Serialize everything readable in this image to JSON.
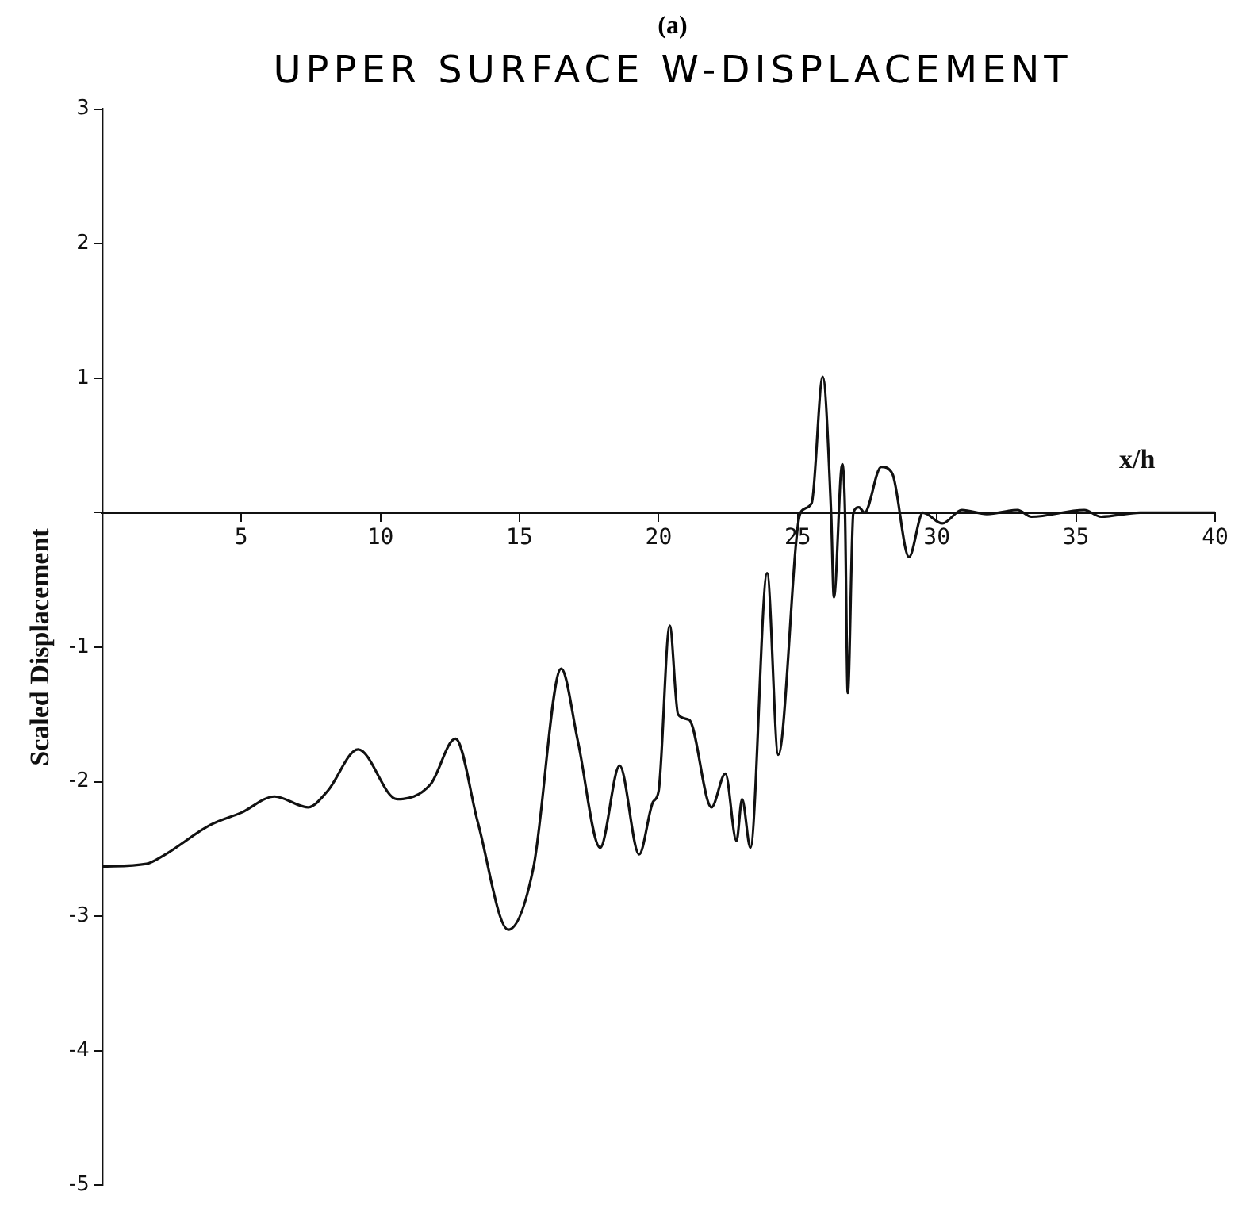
{
  "chart_data": {
    "type": "line",
    "title": "UPPER SURFACE W-DISPLACEMENT",
    "subtitle": "(a)",
    "xlabel": "x/h",
    "ylabel": "Scaled Displacement",
    "series": [
      {
        "color": "#111111",
        "x": [
          0,
          1.6,
          2.2,
          3.9,
          5.0,
          6.2,
          7.4,
          8.1,
          9.2,
          10.6,
          11.8,
          12.7,
          13.5,
          14.6,
          15.5,
          16.5,
          17.1,
          17.9,
          18.6,
          19.3,
          19.8,
          20.0,
          20.4,
          20.7,
          21.1,
          21.9,
          22.4,
          22.8,
          23.0,
          23.3,
          23.9,
          24.3,
          25.1,
          25.5,
          25.9,
          26.2,
          26.3,
          26.6,
          26.7,
          26.8,
          27.0,
          27.2,
          27.4,
          28.0,
          28.4,
          29.0,
          29.5,
          30.2,
          30.9,
          31.8,
          32.9,
          33.4,
          35.3,
          35.9,
          37.3,
          40
        ],
        "values": [
          -2.63,
          -2.61,
          -2.55,
          -2.32,
          -2.23,
          -2.11,
          -2.19,
          -2.07,
          -1.76,
          -2.13,
          -2.02,
          -1.68,
          -2.3,
          -3.1,
          -2.64,
          -1.16,
          -1.7,
          -2.49,
          -1.88,
          -2.54,
          -2.15,
          -2.07,
          -0.84,
          -1.5,
          -1.54,
          -2.19,
          -1.94,
          -2.44,
          -2.13,
          -2.49,
          -0.45,
          -1.8,
          0,
          0.07,
          1.01,
          0,
          -0.63,
          0.36,
          0,
          -1.34,
          0,
          0.04,
          0,
          0.34,
          0.29,
          -0.33,
          0,
          -0.08,
          0.02,
          -0.01,
          0.02,
          -0.03,
          0.02,
          -0.03,
          0,
          0
        ]
      }
    ],
    "xlim": [
      0,
      40
    ],
    "ylim": [
      -5,
      3
    ],
    "xticks": [
      {
        "value": 0,
        "label": null
      },
      5,
      10,
      15,
      20,
      25,
      30,
      35,
      40
    ],
    "yticks": [
      -5,
      -4,
      -3,
      -2,
      -1,
      {
        "value": 0,
        "label": null
      },
      1,
      2,
      3
    ],
    "grid": false,
    "legend": false,
    "marker": "none",
    "line_style": "solid"
  }
}
